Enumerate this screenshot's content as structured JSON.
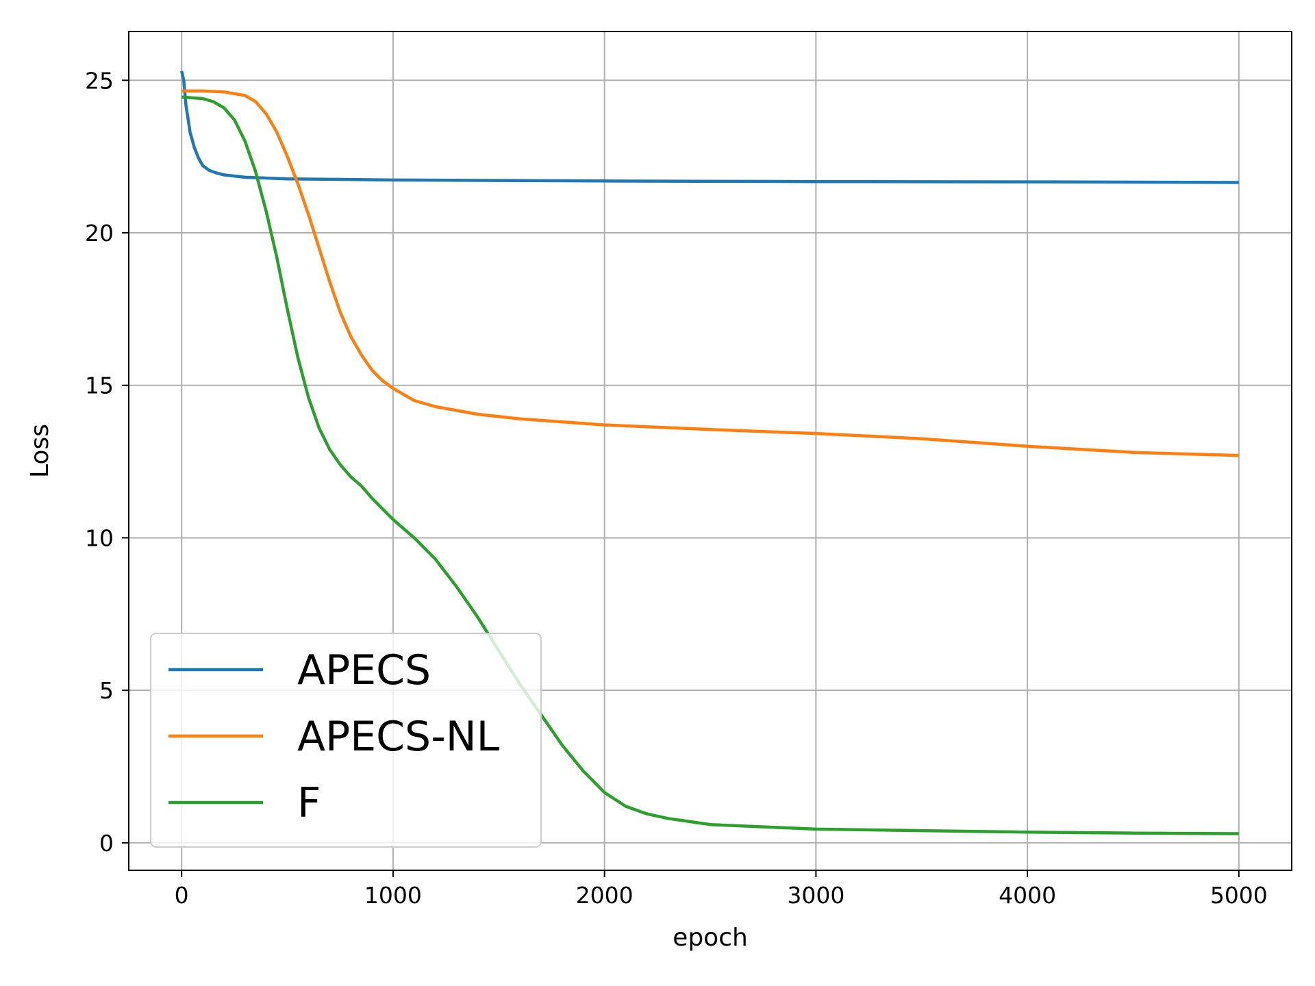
{
  "chart_data": {
    "type": "line",
    "title": "",
    "xlabel": "epoch",
    "ylabel": "Loss",
    "xlim": [
      -250,
      5250
    ],
    "ylim": [
      -0.9,
      26.6
    ],
    "xticks": [
      0,
      1000,
      2000,
      3000,
      4000,
      5000
    ],
    "xtick_labels": [
      "0",
      "1000",
      "2000",
      "3000",
      "4000",
      "5000"
    ],
    "yticks": [
      0,
      5,
      10,
      15,
      20,
      25
    ],
    "ytick_labels": [
      "0",
      "5",
      "10",
      "15",
      "20",
      "25"
    ],
    "grid": true,
    "legend_position": "lower-left",
    "series": [
      {
        "name": "APECS",
        "color": "#1f77b4",
        "x": [
          0,
          10,
          20,
          40,
          60,
          80,
          100,
          130,
          160,
          200,
          300,
          500,
          1000,
          2000,
          3000,
          4000,
          5000
        ],
        "y": [
          25.3,
          25.0,
          24.2,
          23.3,
          22.8,
          22.45,
          22.2,
          22.05,
          21.97,
          21.9,
          21.82,
          21.77,
          21.73,
          21.7,
          21.68,
          21.67,
          21.65
        ]
      },
      {
        "name": "APECS-NL",
        "color": "#ff7f0e",
        "x": [
          0,
          100,
          200,
          300,
          350,
          400,
          450,
          500,
          550,
          600,
          650,
          700,
          750,
          800,
          850,
          900,
          950,
          1000,
          1100,
          1200,
          1400,
          1600,
          2000,
          2500,
          3000,
          3500,
          4000,
          4500,
          5000
        ],
        "y": [
          24.65,
          24.65,
          24.62,
          24.5,
          24.3,
          23.9,
          23.3,
          22.5,
          21.6,
          20.6,
          19.5,
          18.4,
          17.4,
          16.6,
          16.0,
          15.5,
          15.15,
          14.9,
          14.5,
          14.3,
          14.05,
          13.9,
          13.7,
          13.55,
          13.42,
          13.25,
          13.0,
          12.8,
          12.7
        ]
      },
      {
        "name": "F",
        "color": "#2ca02c",
        "x": [
          0,
          100,
          150,
          200,
          250,
          300,
          350,
          400,
          450,
          500,
          550,
          600,
          650,
          700,
          750,
          800,
          850,
          900,
          1000,
          1100,
          1200,
          1300,
          1400,
          1500,
          1600,
          1700,
          1800,
          1900,
          2000,
          2100,
          2200,
          2300,
          2500,
          3000,
          3500,
          4000,
          4500,
          5000
        ],
        "y": [
          24.45,
          24.4,
          24.3,
          24.1,
          23.7,
          23.0,
          22.0,
          20.7,
          19.2,
          17.5,
          15.9,
          14.6,
          13.6,
          12.9,
          12.4,
          12.0,
          11.7,
          11.3,
          10.6,
          10.0,
          9.3,
          8.4,
          7.4,
          6.3,
          5.2,
          4.2,
          3.2,
          2.35,
          1.65,
          1.2,
          0.95,
          0.8,
          0.6,
          0.45,
          0.4,
          0.35,
          0.32,
          0.3
        ]
      }
    ]
  }
}
